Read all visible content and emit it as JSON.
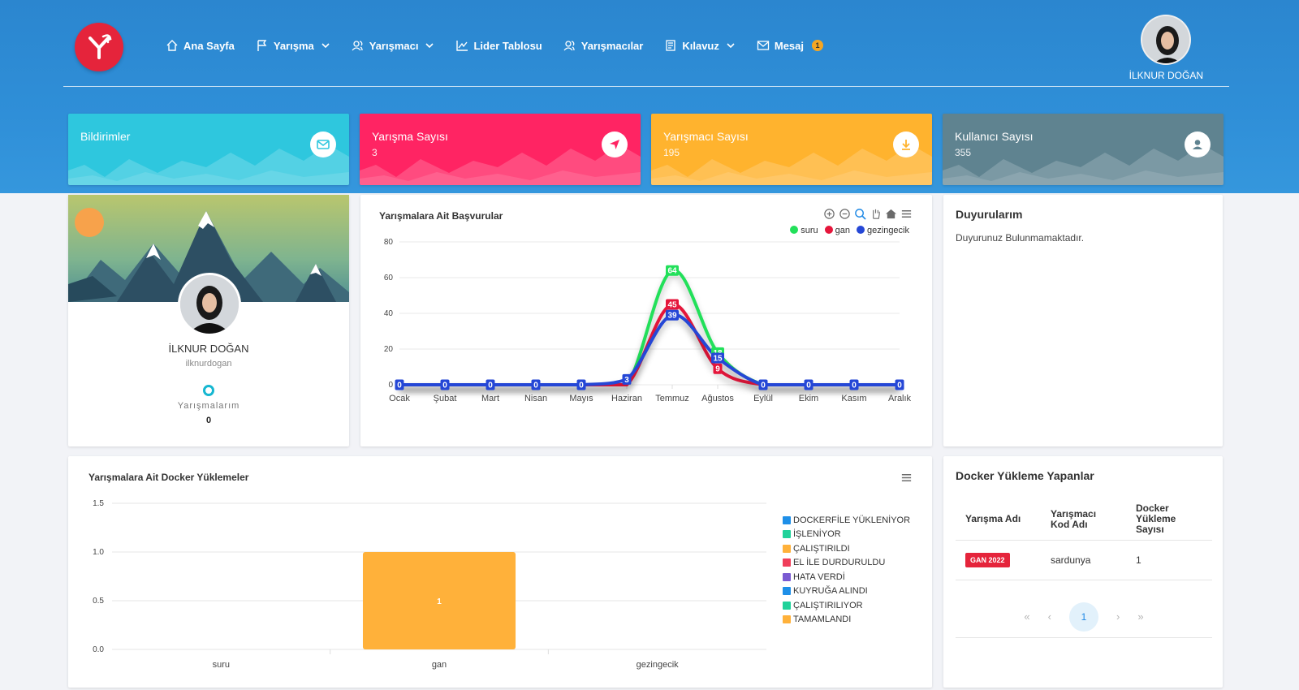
{
  "nav": {
    "items": [
      {
        "label": "Ana Sayfa",
        "icon": "home-icon",
        "dropdown": false
      },
      {
        "label": "Yarışma",
        "icon": "flag-icon",
        "dropdown": true
      },
      {
        "label": "Yarışmacı",
        "icon": "users-icon",
        "dropdown": true
      },
      {
        "label": "Lider Tablosu",
        "icon": "chart-line-icon",
        "dropdown": false
      },
      {
        "label": "Yarışmacılar",
        "icon": "users-icon",
        "dropdown": false
      },
      {
        "label": "Kılavuz",
        "icon": "document-icon",
        "dropdown": true
      },
      {
        "label": "Mesaj",
        "icon": "mail-icon",
        "dropdown": false,
        "badge": "1"
      }
    ]
  },
  "user": {
    "name": "İLKNUR DOĞAN",
    "username": "ilknurdogan"
  },
  "stats": [
    {
      "title": "Bildirimler",
      "value": "",
      "color": "#2ec7de",
      "icon": "mail-icon"
    },
    {
      "title": "Yarışma Sayısı",
      "value": "3",
      "color": "#ff2463",
      "icon": "navigation-icon"
    },
    {
      "title": "Yarışmacı Sayısı",
      "value": "195",
      "color": "#ffb32e",
      "icon": "download-icon"
    },
    {
      "title": "Kullanıcı Sayısı",
      "value": "355",
      "color": "#5f8390",
      "icon": "user-icon"
    }
  ],
  "profile": {
    "stat_label": "Yarışmalarım",
    "stat_value": "0"
  },
  "announcements": {
    "title": "Duyurularım",
    "empty": "Duyurunuz Bulunmamaktadır."
  },
  "docker_users": {
    "title": "Docker Yükleme Yapanlar",
    "headers": [
      "Yarışma Adı",
      "Yarışmacı Kod Adı",
      "Docker Yükleme Sayısı"
    ],
    "rows": [
      {
        "competition": "GAN 2022",
        "code": "sardunya",
        "count": "1"
      }
    ],
    "pager": {
      "first": "«",
      "prev": "‹",
      "current": "1",
      "next": "›",
      "last": "»"
    }
  },
  "chart_data": [
    {
      "type": "line",
      "title": "Yarışmalara Ait Başvurular",
      "categories": [
        "Ocak",
        "Şubat",
        "Mart",
        "Nisan",
        "Mayıs",
        "Haziran",
        "Temmuz",
        "Ağustos",
        "Eylül",
        "Ekim",
        "Kasım",
        "Aralık"
      ],
      "series": [
        {
          "name": "suru",
          "color": "#22e05a",
          "values": [
            0,
            0,
            0,
            0,
            0,
            0,
            64,
            18,
            0,
            0,
            0,
            0
          ]
        },
        {
          "name": "gan",
          "color": "#e5163b",
          "values": [
            0,
            0,
            0,
            0,
            0,
            0,
            45,
            9,
            0,
            0,
            0,
            0
          ]
        },
        {
          "name": "gezingecik",
          "color": "#2547d6",
          "values": [
            0,
            0,
            0,
            0,
            0,
            3,
            39,
            15,
            0,
            0,
            0,
            0
          ]
        }
      ],
      "ylim": [
        0,
        80
      ],
      "yticks": [
        0,
        20,
        40,
        60,
        80
      ],
      "legend": "top-right"
    },
    {
      "type": "bar",
      "title": "Yarışmalara Ait Docker Yüklemeler",
      "categories": [
        "suru",
        "gan",
        "gezingecik"
      ],
      "series": [
        {
          "name": "DOCKERFİLE YÜKLENİYOR",
          "color": "#1e8fe8",
          "values": [
            0,
            0,
            0
          ]
        },
        {
          "name": "İŞLENİYOR",
          "color": "#20d29a",
          "values": [
            0,
            0,
            0
          ]
        },
        {
          "name": "ÇALIŞTIRILDI",
          "color": "#ffb13a",
          "values": [
            0,
            1,
            0
          ]
        },
        {
          "name": "EL İLE DURDURULDU",
          "color": "#f03e5a",
          "values": [
            0,
            0,
            0
          ]
        },
        {
          "name": "HATA VERDİ",
          "color": "#7a5ad2",
          "values": [
            0,
            0,
            0
          ]
        },
        {
          "name": "KUYRUĞA ALINDI",
          "color": "#1e8fe8",
          "values": [
            0,
            0,
            0
          ]
        },
        {
          "name": "ÇALIŞTIRILIYOR",
          "color": "#20d29a",
          "values": [
            0,
            0,
            0
          ]
        },
        {
          "name": "TAMAMLANDI",
          "color": "#ffb13a",
          "values": [
            0,
            0,
            0
          ]
        }
      ],
      "ylim": [
        0,
        1.5
      ],
      "yticks": [
        "0.0",
        "0.5",
        "1.0",
        "1.5"
      ],
      "legend": "right"
    }
  ]
}
